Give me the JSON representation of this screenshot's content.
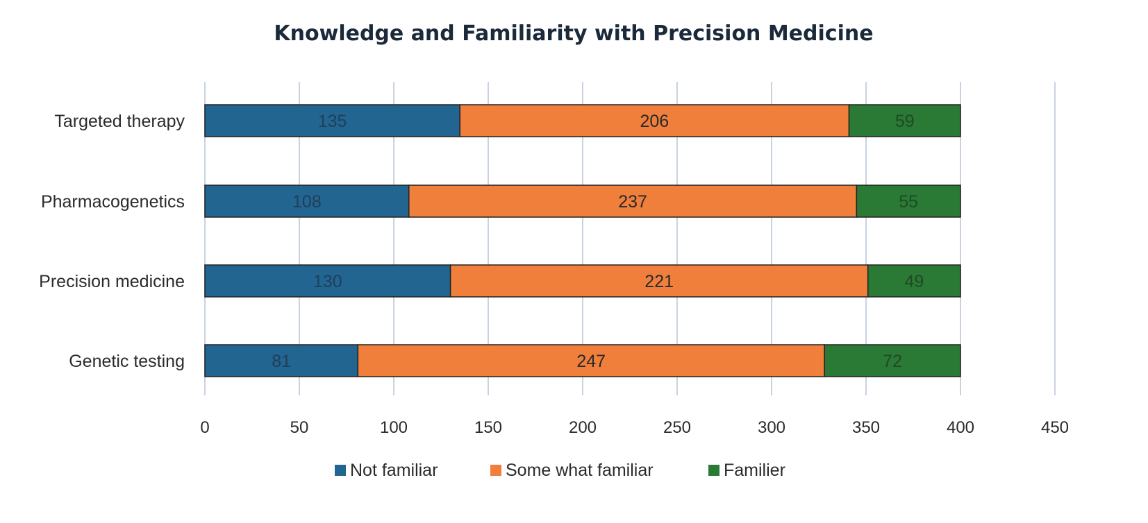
{
  "chart_data": {
    "type": "bar",
    "orientation": "horizontal",
    "stacked": true,
    "title": "Knowledge and Familiarity with Precision Medicine",
    "categories": [
      "Targeted therapy",
      "Pharmacogenetics",
      "Precision medicine",
      "Genetic testing"
    ],
    "series": [
      {
        "name": "Not familiar",
        "values": [
          135,
          108,
          130,
          81
        ],
        "color": "#236591",
        "label_color": "#1f3f5a"
      },
      {
        "name": "Some what familiar",
        "values": [
          206,
          237,
          221,
          247
        ],
        "color": "#f07f3c",
        "label_color": "#2a2a2a"
      },
      {
        "name": "Familier",
        "values": [
          59,
          55,
          49,
          72
        ],
        "color": "#2a7a35",
        "label_color": "#1f4a26"
      }
    ],
    "xlim": [
      0,
      450
    ],
    "x_ticks": [
      0,
      50,
      100,
      150,
      200,
      250,
      300,
      350,
      400,
      450
    ],
    "xlabel": "",
    "ylabel": "",
    "grid": "vertical",
    "legend": "bottom",
    "colors": {
      "grid": "#c9d3e0",
      "bar_outline": "#222222"
    }
  }
}
